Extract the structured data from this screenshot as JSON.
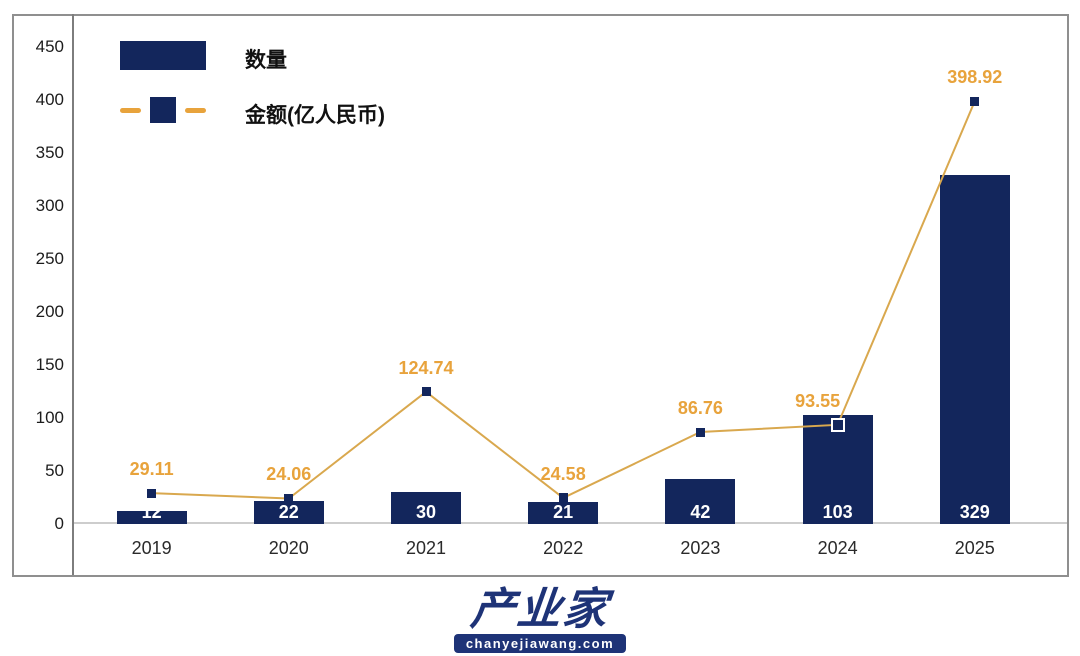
{
  "legend": [
    {
      "label": "数量",
      "type": "bar"
    },
    {
      "label": "金额(亿人民币)",
      "type": "line"
    }
  ],
  "chart_data": {
    "type": "bar+line combo",
    "categories": [
      "2019",
      "2020",
      "2021",
      "2022",
      "2023",
      "2024",
      "2025"
    ],
    "series": [
      {
        "name": "数量",
        "type": "bar",
        "values": [
          12,
          22,
          30,
          21,
          42,
          103,
          329
        ]
      },
      {
        "name": "金额(亿人民币)",
        "type": "line",
        "values": [
          29.11,
          24.06,
          124.74,
          24.58,
          86.76,
          93.55,
          398.92
        ],
        "open_marker_index": 5,
        "label_dx": [
          0,
          0,
          0,
          0,
          0,
          -20,
          0
        ]
      }
    ],
    "title": "",
    "xlabel": "",
    "ylabel": "",
    "ylim": [
      0,
      450
    ],
    "ytick_step": 50,
    "grid": false,
    "legend_position": "top-left"
  },
  "colors": {
    "bar": "#13265c",
    "line": "#d9a84e",
    "point_label": "#e8a33c",
    "bar_value_text": "#ffffff",
    "frame_border": "#8f8f8f",
    "y_axis": "#7d7d7d",
    "x_axis": "#cdcdcd",
    "logo_blue": "#1e3377"
  },
  "logo": {
    "name": "产业家",
    "domain": "chanyejiawang.com"
  }
}
